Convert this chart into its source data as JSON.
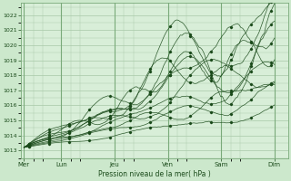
{
  "title": "Pression niveau de la mer( hPa )",
  "bg_color": "#cce8cc",
  "plot_bg_color": "#d8eed8",
  "grid_color": "#a8c8a8",
  "line_color": "#1a4a1a",
  "marker_color": "#1a4a1a",
  "ylim": [
    1012.5,
    1022.8
  ],
  "yticks": [
    1013,
    1014,
    1015,
    1016,
    1017,
    1018,
    1019,
    1020,
    1021,
    1022
  ],
  "day_labels": [
    "Mer",
    "Lun",
    "Jeu",
    "Ven",
    "Sam",
    "Dim"
  ],
  "day_positions": [
    0,
    0.7,
    1.7,
    2.7,
    3.7,
    4.7
  ],
  "xlim": [
    -0.05,
    4.95
  ],
  "n_steps": 150
}
